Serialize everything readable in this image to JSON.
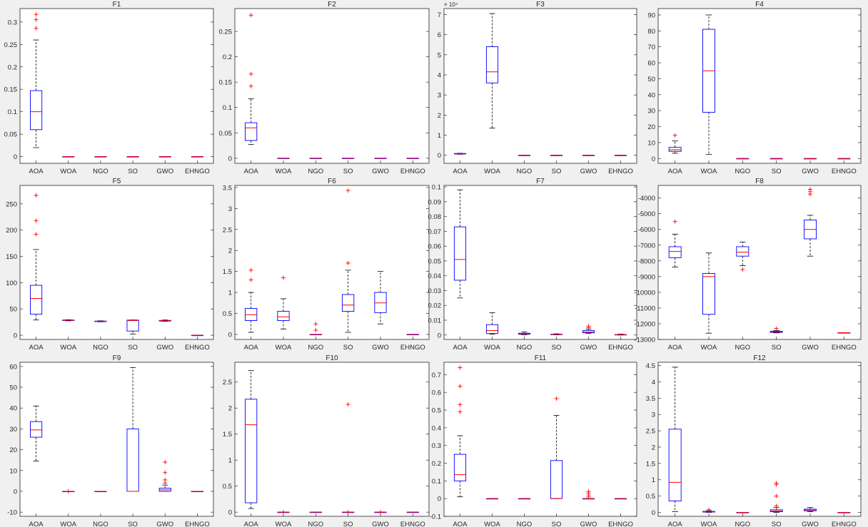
{
  "figure": {
    "background": "#f0f0f0",
    "axes_bg": "#ffffff",
    "box_color": "#0000ff",
    "median_color": "#ff0000",
    "outlier_color": "#ff0000",
    "whisker_color": "#000000"
  },
  "chart_data": [
    {
      "title": "F1",
      "type": "box",
      "categories": [
        "AOA",
        "WOA",
        "NGO",
        "SO",
        "GWO",
        "EHNGO"
      ],
      "ylim": [
        -0.015,
        0.33
      ],
      "yticks": [
        0,
        0.05,
        0.1,
        0.15,
        0.2,
        0.25,
        0.3
      ],
      "ytick_labels": [
        "0",
        "0.05",
        "0.1",
        "0.15",
        "0.2",
        "0.25",
        "0.3"
      ],
      "multiplier": "",
      "boxes": [
        {
          "lw": 0.02,
          "q1": 0.06,
          "med": 0.1,
          "q3": 0.147,
          "uw": 0.26,
          "outliers": [
            0.286,
            0.305,
            0.317
          ]
        },
        {
          "lw": 0,
          "q1": 0,
          "med": 0,
          "q3": 0,
          "uw": 0,
          "outliers": []
        },
        {
          "lw": 0,
          "q1": 0,
          "med": 0,
          "q3": 0,
          "uw": 0,
          "outliers": []
        },
        {
          "lw": 0,
          "q1": 0,
          "med": 0,
          "q3": 0,
          "uw": 0,
          "outliers": []
        },
        {
          "lw": 0,
          "q1": 0,
          "med": 0,
          "q3": 0,
          "uw": 0,
          "outliers": []
        },
        {
          "lw": 0,
          "q1": 0,
          "med": 0,
          "q3": 0,
          "uw": 0,
          "outliers": []
        }
      ]
    },
    {
      "title": "F2",
      "type": "box",
      "categories": [
        "AOA",
        "WOA",
        "NGO",
        "SO",
        "GWO",
        "EHNGO"
      ],
      "ylim": [
        -0.01,
        0.295
      ],
      "yticks": [
        0,
        0.05,
        0.1,
        0.15,
        0.2,
        0.25
      ],
      "ytick_labels": [
        "0",
        "0.05",
        "0.1",
        "0.15",
        "0.2",
        "0.25"
      ],
      "multiplier": "",
      "boxes": [
        {
          "lw": 0.027,
          "q1": 0.035,
          "med": 0.06,
          "q3": 0.07,
          "uw": 0.117,
          "outliers": [
            0.142,
            0.166,
            0.282
          ]
        },
        {
          "lw": 0,
          "q1": 0,
          "med": 0,
          "q3": 0,
          "uw": 0,
          "outliers": []
        },
        {
          "lw": 0,
          "q1": 0,
          "med": 0,
          "q3": 0,
          "uw": 0,
          "outliers": []
        },
        {
          "lw": 0,
          "q1": 0,
          "med": 0,
          "q3": 0,
          "uw": 0,
          "outliers": []
        },
        {
          "lw": 0,
          "q1": 0,
          "med": 0,
          "q3": 0,
          "uw": 0,
          "outliers": []
        },
        {
          "lw": 0,
          "q1": 0,
          "med": 0,
          "q3": 0,
          "uw": 0,
          "outliers": []
        }
      ]
    },
    {
      "title": "F3",
      "type": "box",
      "categories": [
        "AOA",
        "WOA",
        "NGO",
        "SO",
        "GWO",
        "EHNGO"
      ],
      "ylim": [
        -0.4,
        7.3
      ],
      "yticks": [
        0,
        1,
        2,
        3,
        4,
        5,
        6,
        7
      ],
      "ytick_labels": [
        "0",
        "1",
        "2",
        "3",
        "4",
        "5",
        "6",
        "7"
      ],
      "multiplier": "× 10⁴",
      "boxes": [
        {
          "lw": 0.05,
          "q1": 0.06,
          "med": 0.07,
          "q3": 0.09,
          "uw": 0.1,
          "outliers": []
        },
        {
          "lw": 1.35,
          "q1": 3.6,
          "med": 4.15,
          "q3": 5.4,
          "uw": 7.05,
          "outliers": []
        },
        {
          "lw": 0,
          "q1": 0,
          "med": 0,
          "q3": 0,
          "uw": 0,
          "outliers": []
        },
        {
          "lw": 0,
          "q1": 0,
          "med": 0,
          "q3": 0,
          "uw": 0,
          "outliers": []
        },
        {
          "lw": 0,
          "q1": 0,
          "med": 0,
          "q3": 0,
          "uw": 0,
          "outliers": []
        },
        {
          "lw": 0,
          "q1": 0,
          "med": 0,
          "q3": 0,
          "uw": 0,
          "outliers": []
        }
      ]
    },
    {
      "title": "F4",
      "type": "box",
      "categories": [
        "AOA",
        "WOA",
        "NGO",
        "SO",
        "GWO",
        "EHNGO"
      ],
      "ylim": [
        -3,
        94
      ],
      "yticks": [
        0,
        10,
        20,
        30,
        40,
        50,
        60,
        70,
        80,
        90
      ],
      "ytick_labels": [
        "0",
        "10",
        "20",
        "30",
        "40",
        "50",
        "60",
        "70",
        "80",
        "90"
      ],
      "multiplier": "",
      "boxes": [
        {
          "lw": 3.3,
          "q1": 4.5,
          "med": 5.5,
          "q3": 7,
          "uw": 11,
          "outliers": [
            14.5
          ]
        },
        {
          "lw": 2.5,
          "q1": 29,
          "med": 55,
          "q3": 81,
          "uw": 90,
          "outliers": []
        },
        {
          "lw": 0,
          "q1": 0,
          "med": 0,
          "q3": 0,
          "uw": 0,
          "outliers": []
        },
        {
          "lw": 0,
          "q1": 0,
          "med": 0,
          "q3": 0,
          "uw": 0,
          "outliers": []
        },
        {
          "lw": 0,
          "q1": 0,
          "med": 0,
          "q3": 0,
          "uw": 0,
          "outliers": []
        },
        {
          "lw": 0,
          "q1": 0,
          "med": 0,
          "q3": 0,
          "uw": 0,
          "outliers": []
        }
      ]
    },
    {
      "title": "F5",
      "type": "box",
      "categories": [
        "AOA",
        "WOA",
        "NGO",
        "SO",
        "GWO",
        "EHNGO"
      ],
      "ylim": [
        -8,
        285
      ],
      "yticks": [
        0,
        50,
        100,
        150,
        200,
        250
      ],
      "ytick_labels": [
        "0",
        "50",
        "100",
        "150",
        "200",
        "250"
      ],
      "multiplier": "",
      "boxes": [
        {
          "lw": 29,
          "q1": 40,
          "med": 70,
          "q3": 95,
          "uw": 163,
          "outliers": [
            192,
            218,
            266
          ]
        },
        {
          "lw": 27.5,
          "q1": 28,
          "med": 28.5,
          "q3": 29,
          "uw": 29.5,
          "outliers": []
        },
        {
          "lw": 25.5,
          "q1": 26,
          "med": 26.5,
          "q3": 27,
          "uw": 27.5,
          "outliers": []
        },
        {
          "lw": 2,
          "q1": 8,
          "med": 28,
          "q3": 28.8,
          "uw": 29,
          "outliers": []
        },
        {
          "lw": 26.5,
          "q1": 27,
          "med": 27.7,
          "q3": 28.3,
          "uw": 29,
          "outliers": []
        },
        {
          "lw": 0,
          "q1": 0,
          "med": 0,
          "q3": 0,
          "uw": 0,
          "outliers": []
        }
      ]
    },
    {
      "title": "F6",
      "type": "box",
      "categories": [
        "AOA",
        "WOA",
        "NGO",
        "SO",
        "GWO",
        "EHNGO"
      ],
      "ylim": [
        -0.12,
        3.55
      ],
      "yticks": [
        0,
        0.5,
        1,
        1.5,
        2,
        2.5,
        3,
        3.5
      ],
      "ytick_labels": [
        "0",
        "0.5",
        "1",
        "1.5",
        "2",
        "2.5",
        "3",
        "3.5"
      ],
      "multiplier": "",
      "boxes": [
        {
          "lw": 0.05,
          "q1": 0.33,
          "med": 0.47,
          "q3": 0.62,
          "uw": 1,
          "outliers": [
            1.3,
            1.53
          ]
        },
        {
          "lw": 0.13,
          "q1": 0.33,
          "med": 0.42,
          "q3": 0.55,
          "uw": 0.85,
          "outliers": [
            1.35
          ]
        },
        {
          "lw": 0,
          "q1": 0,
          "med": 0,
          "q3": 0,
          "uw": 0,
          "outliers": [
            0.1,
            0.25
          ]
        },
        {
          "lw": 0.05,
          "q1": 0.55,
          "med": 0.7,
          "q3": 0.95,
          "uw": 1.53,
          "outliers": [
            1.7,
            3.43
          ]
        },
        {
          "lw": 0.25,
          "q1": 0.52,
          "med": 0.75,
          "q3": 1,
          "uw": 1.5,
          "outliers": []
        },
        {
          "lw": 0,
          "q1": 0,
          "med": 0,
          "q3": 0,
          "uw": 0,
          "outliers": []
        }
      ]
    },
    {
      "title": "F7",
      "type": "box",
      "categories": [
        "AOA",
        "WOA",
        "NGO",
        "SO",
        "GWO",
        "EHNGO"
      ],
      "ylim": [
        -0.003,
        0.101
      ],
      "yticks": [
        0,
        0.01,
        0.02,
        0.03,
        0.04,
        0.05,
        0.06,
        0.07,
        0.08,
        0.09,
        0.1
      ],
      "ytick_labels": [
        "0",
        "0.01",
        "0.02",
        "0.03",
        "0.04",
        "0.05",
        "0.06",
        "0.07",
        "0.08",
        "0.09",
        "0.1"
      ],
      "multiplier": "",
      "boxes": [
        {
          "lw": 0.025,
          "q1": 0.037,
          "med": 0.051,
          "q3": 0.073,
          "uw": 0.098,
          "outliers": []
        },
        {
          "lw": 0.0005,
          "q1": 0.001,
          "med": 0.003,
          "q3": 0.007,
          "uw": 0.015,
          "outliers": []
        },
        {
          "lw": 0.0002,
          "q1": 0.0005,
          "med": 0.0008,
          "q3": 0.0012,
          "uw": 0.002,
          "outliers": []
        },
        {
          "lw": 0.0001,
          "q1": 0.0002,
          "med": 0.0003,
          "q3": 0.0005,
          "uw": 0.0008,
          "outliers": []
        },
        {
          "lw": 0.001,
          "q1": 0.0015,
          "med": 0.002,
          "q3": 0.003,
          "uw": 0.004,
          "outliers": [
            0.005,
            0.006
          ]
        },
        {
          "lw": 0,
          "q1": 0.0001,
          "med": 0.0002,
          "q3": 0.0003,
          "uw": 0.0006,
          "outliers": []
        }
      ]
    },
    {
      "title": "F8",
      "type": "box",
      "categories": [
        "AOA",
        "WOA",
        "NGO",
        "SO",
        "GWO",
        "EHNGO"
      ],
      "ylim": [
        -13000,
        -3200
      ],
      "yticks": [
        -13000,
        -12000,
        -11000,
        -10000,
        -9000,
        -8000,
        -7000,
        -6000,
        -5000,
        -4000
      ],
      "ytick_labels": [
        "-13000",
        "-12000",
        "-11000",
        "-10000",
        "-9000",
        "-8000",
        "-7000",
        "-6000",
        "-5000",
        "-4000"
      ],
      "multiplier": "",
      "boxes": [
        {
          "lw": -8400,
          "q1": -7800,
          "med": -7400,
          "q3": -7100,
          "uw": -6300,
          "outliers": [
            -5500
          ]
        },
        {
          "lw": -12600,
          "q1": -11400,
          "med": -9000,
          "q3": -8800,
          "uw": -7500,
          "outliers": []
        },
        {
          "lw": -8300,
          "q1": -7700,
          "med": -7450,
          "q3": -7100,
          "uw": -6800,
          "outliers": [
            -8550
          ]
        },
        {
          "lw": -12580,
          "q1": -12550,
          "med": -12520,
          "q3": -12480,
          "uw": -12430,
          "outliers": [
            -12300
          ]
        },
        {
          "lw": -7700,
          "q1": -6600,
          "med": -6000,
          "q3": -5400,
          "uw": -5100,
          "outliers": [
            -3750,
            -3600,
            -3450
          ]
        },
        {
          "lw": -12569,
          "q1": -12569,
          "med": -12569,
          "q3": -12569,
          "uw": -12569,
          "outliers": []
        }
      ]
    },
    {
      "title": "F9",
      "type": "box",
      "categories": [
        "AOA",
        "WOA",
        "NGO",
        "SO",
        "GWO",
        "EHNGO"
      ],
      "ylim": [
        -12,
        62
      ],
      "yticks": [
        -10,
        0,
        10,
        20,
        30,
        40,
        50,
        60
      ],
      "ytick_labels": [
        "-10",
        "0",
        "10",
        "20",
        "30",
        "40",
        "50",
        "60"
      ],
      "multiplier": "",
      "boxes": [
        {
          "lw": 14.5,
          "q1": 26,
          "med": 29.5,
          "q3": 33.5,
          "uw": 41,
          "outliers": []
        },
        {
          "lw": 0,
          "q1": 0,
          "med": 0,
          "q3": 0,
          "uw": 0,
          "outliers": [
            0
          ]
        },
        {
          "lw": 0,
          "q1": 0,
          "med": 0,
          "q3": 0,
          "uw": 0,
          "outliers": []
        },
        {
          "lw": 0,
          "q1": 0,
          "med": 0,
          "q3": 30,
          "uw": 59.5,
          "outliers": []
        },
        {
          "lw": 0,
          "q1": 0,
          "med": 0.7,
          "q3": 1.5,
          "uw": 3,
          "outliers": [
            4,
            5.5,
            9,
            14
          ]
        },
        {
          "lw": 0,
          "q1": 0,
          "med": 0,
          "q3": 0,
          "uw": 0,
          "outliers": []
        }
      ]
    },
    {
      "title": "F10",
      "type": "box",
      "categories": [
        "AOA",
        "WOA",
        "NGO",
        "SO",
        "GWO",
        "EHNGO"
      ],
      "ylim": [
        -0.08,
        2.88
      ],
      "yticks": [
        0,
        0.5,
        1,
        1.5,
        2,
        2.5
      ],
      "ytick_labels": [
        "0",
        "0.5",
        "1",
        "1.5",
        "2",
        "2.5"
      ],
      "multiplier": "",
      "boxes": [
        {
          "lw": 0.07,
          "q1": 0.18,
          "med": 1.68,
          "q3": 2.17,
          "uw": 2.72,
          "outliers": []
        },
        {
          "lw": 0,
          "q1": 0,
          "med": 0,
          "q3": 0,
          "uw": 0,
          "outliers": [
            0
          ]
        },
        {
          "lw": 0,
          "q1": 0,
          "med": 0,
          "q3": 0,
          "uw": 0,
          "outliers": []
        },
        {
          "lw": 0,
          "q1": 0,
          "med": 0,
          "q3": 0,
          "uw": 0,
          "outliers": [
            0,
            2.07
          ]
        },
        {
          "lw": 0,
          "q1": 0,
          "med": 0,
          "q3": 0,
          "uw": 0,
          "outliers": [
            0
          ]
        },
        {
          "lw": 0,
          "q1": 0,
          "med": 0,
          "q3": 0,
          "uw": 0,
          "outliers": []
        }
      ]
    },
    {
      "title": "F11",
      "type": "box",
      "categories": [
        "AOA",
        "WOA",
        "NGO",
        "SO",
        "GWO",
        "EHNGO"
      ],
      "ylim": [
        -0.1,
        0.77
      ],
      "yticks": [
        -0.1,
        0,
        0.1,
        0.2,
        0.3,
        0.4,
        0.5,
        0.6,
        0.7
      ],
      "ytick_labels": [
        "-0.1",
        "0",
        "0.1",
        "0.2",
        "0.3",
        "0.4",
        "0.5",
        "0.6",
        "0.7"
      ],
      "multiplier": "",
      "boxes": [
        {
          "lw": 0.01,
          "q1": 0.1,
          "med": 0.135,
          "q3": 0.25,
          "uw": 0.355,
          "outliers": [
            0.49,
            0.53,
            0.635,
            0.74
          ]
        },
        {
          "lw": 0,
          "q1": 0,
          "med": 0,
          "q3": 0,
          "uw": 0,
          "outliers": []
        },
        {
          "lw": 0,
          "q1": 0,
          "med": 0,
          "q3": 0,
          "uw": 0,
          "outliers": []
        },
        {
          "lw": 0,
          "q1": 0,
          "med": 0,
          "q3": 0.215,
          "uw": 0.47,
          "outliers": [
            0.565
          ]
        },
        {
          "lw": 0,
          "q1": 0,
          "med": 0,
          "q3": 0,
          "uw": 0,
          "outliers": [
            0.01,
            0.02,
            0.03,
            0.04
          ]
        },
        {
          "lw": 0,
          "q1": 0,
          "med": 0,
          "q3": 0,
          "uw": 0,
          "outliers": []
        }
      ]
    },
    {
      "title": "F12",
      "type": "box",
      "categories": [
        "AOA",
        "WOA",
        "NGO",
        "SO",
        "GWO",
        "EHNGO"
      ],
      "ylim": [
        -0.12,
        4.6
      ],
      "yticks": [
        0,
        0.5,
        1,
        1.5,
        2,
        2.5,
        3,
        3.5,
        4,
        4.5
      ],
      "ytick_labels": [
        "0",
        "0.5",
        "1",
        "1.5",
        "2",
        "2.5",
        "3",
        "3.5",
        "4",
        "4.5"
      ],
      "multiplier": "",
      "boxes": [
        {
          "lw": 0.02,
          "q1": 0.35,
          "med": 0.92,
          "q3": 2.55,
          "uw": 4.45,
          "outliers": []
        },
        {
          "lw": 0,
          "q1": 0.01,
          "med": 0.02,
          "q3": 0.03,
          "uw": 0.05,
          "outliers": [
            0.08
          ]
        },
        {
          "lw": 0,
          "q1": 0,
          "med": 0,
          "q3": 0,
          "uw": 0,
          "outliers": []
        },
        {
          "lw": 0,
          "q1": 0.02,
          "med": 0.04,
          "q3": 0.08,
          "uw": 0.15,
          "outliers": [
            0.2,
            0.5,
            0.85,
            0.9
          ]
        },
        {
          "lw": 0.02,
          "q1": 0.05,
          "med": 0.07,
          "q3": 0.1,
          "uw": 0.15,
          "outliers": []
        },
        {
          "lw": 0,
          "q1": 0,
          "med": 0,
          "q3": 0,
          "uw": 0,
          "outliers": []
        }
      ]
    }
  ]
}
